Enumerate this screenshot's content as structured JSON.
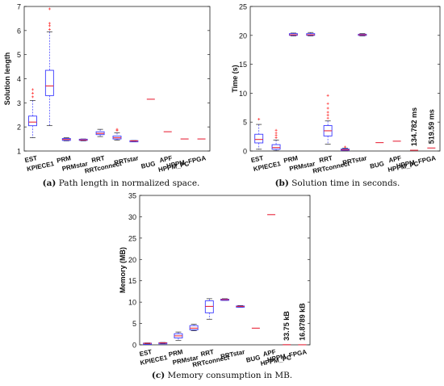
{
  "captions": [
    {
      "tag": "(a)",
      "text": "Path length in normalized space."
    },
    {
      "tag": "(b)",
      "text": "Solution time in seconds."
    },
    {
      "tag": "(c)",
      "text": "Memory consumption in MB."
    }
  ],
  "colors": {
    "box": "#3a3aff",
    "median": "#e8283c",
    "whisker": "#3a3aff",
    "outlier": "#ff3030"
  },
  "chart_data": [
    {
      "type": "box",
      "xlabel": "",
      "ylabel": "Solution length",
      "ylim": [
        1,
        7
      ],
      "yticks": [
        1,
        2,
        3,
        4,
        5,
        6,
        7
      ],
      "categories": [
        "EST",
        "KPIECE1",
        "PRM",
        "PRMstar",
        "RRT",
        "RRTconnect",
        "RRTstar",
        "BUG",
        "APF",
        "HPPM_PC",
        "HPPM_FPGA"
      ],
      "boxes": [
        {
          "q1": 2.05,
          "median": 2.2,
          "q3": 2.45,
          "low": 1.55,
          "high": 3.1,
          "outliers": [
            3.25,
            3.4,
            3.55
          ]
        },
        {
          "q1": 3.3,
          "median": 3.7,
          "q3": 4.35,
          "low": 2.05,
          "high": 5.95,
          "outliers": [
            6.05,
            6.2,
            6.3,
            6.9
          ]
        },
        {
          "q1": 1.44,
          "median": 1.48,
          "q3": 1.52,
          "low": 1.42,
          "high": 1.55,
          "outliers": []
        },
        {
          "q1": 1.44,
          "median": 1.46,
          "q3": 1.49,
          "low": 1.42,
          "high": 1.5,
          "outliers": []
        },
        {
          "q1": 1.68,
          "median": 1.73,
          "q3": 1.8,
          "low": 1.6,
          "high": 1.9,
          "outliers": []
        },
        {
          "q1": 1.5,
          "median": 1.55,
          "q3": 1.62,
          "low": 1.45,
          "high": 1.75,
          "outliers": [
            1.85,
            1.9
          ]
        },
        {
          "q1": 1.41,
          "median": 1.42,
          "q3": 1.43,
          "low": 1.4,
          "high": 1.44,
          "outliers": []
        },
        {
          "q1": 3.15,
          "median": 3.15,
          "q3": 3.15,
          "low": 3.15,
          "high": 3.15,
          "outliers": []
        },
        {
          "q1": 1.8,
          "median": 1.8,
          "q3": 1.8,
          "low": 1.8,
          "high": 1.8,
          "outliers": []
        },
        {
          "q1": 1.5,
          "median": 1.5,
          "q3": 1.5,
          "low": 1.5,
          "high": 1.5,
          "outliers": []
        },
        {
          "q1": 1.5,
          "median": 1.5,
          "q3": 1.5,
          "low": 1.5,
          "high": 1.5,
          "outliers": []
        }
      ],
      "annotations": []
    },
    {
      "type": "box",
      "xlabel": "",
      "ylabel": "Time (s)",
      "ylim": [
        0,
        25
      ],
      "yticks": [
        0,
        5,
        10,
        15,
        20,
        25
      ],
      "categories": [
        "EST",
        "KPIECE1",
        "PRM",
        "PRMstar",
        "RRT",
        "RRTconnect",
        "RRTstar",
        "BUG",
        "APF",
        "HPPM_PC",
        "HPPM_FPGA"
      ],
      "boxes": [
        {
          "q1": 1.4,
          "median": 2.0,
          "q3": 2.9,
          "low": 0.3,
          "high": 4.6,
          "outliers": [
            5.5
          ]
        },
        {
          "q1": 0.3,
          "median": 0.6,
          "q3": 1.1,
          "low": 0.05,
          "high": 1.9,
          "outliers": [
            2.3,
            2.7,
            3.1,
            3.6
          ]
        },
        {
          "q1": 20.0,
          "median": 20.1,
          "q3": 20.3,
          "low": 19.9,
          "high": 20.4,
          "outliers": []
        },
        {
          "q1": 20.0,
          "median": 20.1,
          "q3": 20.3,
          "low": 19.9,
          "high": 20.5,
          "outliers": []
        },
        {
          "q1": 2.6,
          "median": 3.5,
          "q3": 4.4,
          "low": 1.2,
          "high": 5.2,
          "outliers": [
            5.7,
            6.2,
            6.7,
            7.4,
            8.2,
            9.6
          ]
        },
        {
          "q1": 0.1,
          "median": 0.2,
          "q3": 0.35,
          "low": 0.02,
          "high": 0.5,
          "outliers": [
            0.7
          ]
        },
        {
          "q1": 20.0,
          "median": 20.1,
          "q3": 20.2,
          "low": 19.9,
          "high": 20.3,
          "outliers": []
        },
        {
          "q1": 1.45,
          "median": 1.45,
          "q3": 1.45,
          "low": 1.45,
          "high": 1.45,
          "outliers": []
        },
        {
          "q1": 1.7,
          "median": 1.7,
          "q3": 1.7,
          "low": 1.7,
          "high": 1.7,
          "outliers": []
        },
        {
          "q1": 0.13,
          "median": 0.13,
          "q3": 0.13,
          "low": 0.13,
          "high": 0.13,
          "outliers": []
        },
        {
          "q1": 0.52,
          "median": 0.52,
          "q3": 0.52,
          "low": 0.52,
          "high": 0.52,
          "outliers": []
        }
      ],
      "annotations": [
        {
          "category": "HPPM_PC",
          "text": "134.782 ms"
        },
        {
          "category": "HPPM_FPGA",
          "text": "519.59 ms"
        }
      ]
    },
    {
      "type": "box",
      "xlabel": "",
      "ylabel": "Memory (MB)",
      "ylim": [
        0,
        35
      ],
      "yticks": [
        0,
        5,
        10,
        15,
        20,
        25,
        30,
        35
      ],
      "categories": [
        "EST",
        "KPIECE1",
        "PRM",
        "PRMstar",
        "RRT",
        "RRTconnect",
        "RRTstar",
        "BUG",
        "APF",
        "HPPM_PC",
        "HPPM_FPGA"
      ],
      "boxes": [
        {
          "q1": 0.3,
          "median": 0.35,
          "q3": 0.4,
          "low": 0.25,
          "high": 0.45,
          "outliers": []
        },
        {
          "q1": 0.4,
          "median": 0.45,
          "q3": 0.5,
          "low": 0.35,
          "high": 0.55,
          "outliers": []
        },
        {
          "q1": 1.6,
          "median": 2.1,
          "q3": 2.6,
          "low": 1.0,
          "high": 3.0,
          "outliers": []
        },
        {
          "q1": 3.5,
          "median": 3.9,
          "q3": 4.5,
          "low": 3.3,
          "high": 4.8,
          "outliers": []
        },
        {
          "q1": 7.5,
          "median": 9.0,
          "q3": 10.3,
          "low": 6.0,
          "high": 10.8,
          "outliers": []
        },
        {
          "q1": 10.5,
          "median": 10.6,
          "q3": 10.7,
          "low": 10.4,
          "high": 10.8,
          "outliers": []
        },
        {
          "q1": 8.9,
          "median": 9.0,
          "q3": 9.1,
          "low": 8.8,
          "high": 9.2,
          "outliers": []
        },
        {
          "q1": 3.9,
          "median": 3.9,
          "q3": 3.9,
          "low": 3.9,
          "high": 3.9,
          "outliers": []
        },
        {
          "q1": 30.5,
          "median": 30.5,
          "q3": 30.5,
          "low": 30.5,
          "high": 30.5,
          "outliers": []
        },
        {
          "q1": 0.033,
          "median": 0.033,
          "q3": 0.033,
          "low": 0.033,
          "high": 0.033,
          "outliers": []
        },
        {
          "q1": 0.017,
          "median": 0.017,
          "q3": 0.017,
          "low": 0.017,
          "high": 0.017,
          "outliers": []
        }
      ],
      "annotations": [
        {
          "category": "HPPM_PC",
          "text": "33.75 kB"
        },
        {
          "category": "HPPM_FPGA",
          "text": "16.8789 kB"
        }
      ]
    }
  ]
}
